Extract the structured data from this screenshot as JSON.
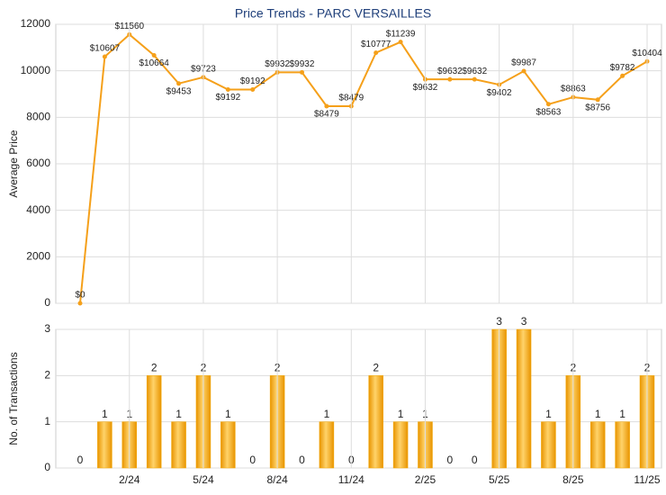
{
  "chart_data": [
    {
      "type": "line",
      "title": "Price Trends - PARC VERSAILLES",
      "y_label": "Average Price",
      "color": "#f5a01a",
      "values": [
        0,
        10607,
        11560,
        10664,
        9453,
        9723,
        9192,
        9192,
        9932,
        9932,
        8479,
        8479,
        10777,
        11239,
        9632,
        9632,
        9632,
        9402,
        9987,
        8563,
        8863,
        8756,
        9782,
        10404
      ],
      "value_labels": [
        "$0",
        "$10607",
        "$11560",
        "$10664",
        "$9453",
        "$9723",
        "$9192",
        "$9192",
        "$9932",
        "$9932",
        "$8479",
        "$8479",
        "$10777",
        "$11239",
        "$9632",
        "$9632",
        "$9632",
        "$9402",
        "$9987",
        "$8563",
        "$8863",
        "$8756",
        "$9782",
        "$10404"
      ],
      "ylim": [
        0,
        12000
      ],
      "yticks": [
        0,
        2000,
        4000,
        6000,
        8000,
        10000,
        12000
      ],
      "grid": true
    },
    {
      "type": "bar",
      "y_label": "No. of Transactions",
      "color": "#f5a800",
      "categories": [
        null,
        null,
        "2/24",
        null,
        null,
        "5/24",
        null,
        null,
        "8/24",
        null,
        null,
        "11/24",
        null,
        null,
        "2/25",
        null,
        null,
        "5/25",
        null,
        null,
        "8/25",
        null,
        null,
        "11/25"
      ],
      "values": [
        0,
        1,
        1,
        2,
        1,
        2,
        1,
        0,
        2,
        0,
        1,
        0,
        2,
        1,
        1,
        0,
        0,
        3,
        3,
        1,
        2,
        1,
        1,
        2
      ],
      "ylim": [
        0,
        3
      ],
      "yticks": [
        0,
        1,
        2,
        3
      ],
      "grid": true
    }
  ]
}
